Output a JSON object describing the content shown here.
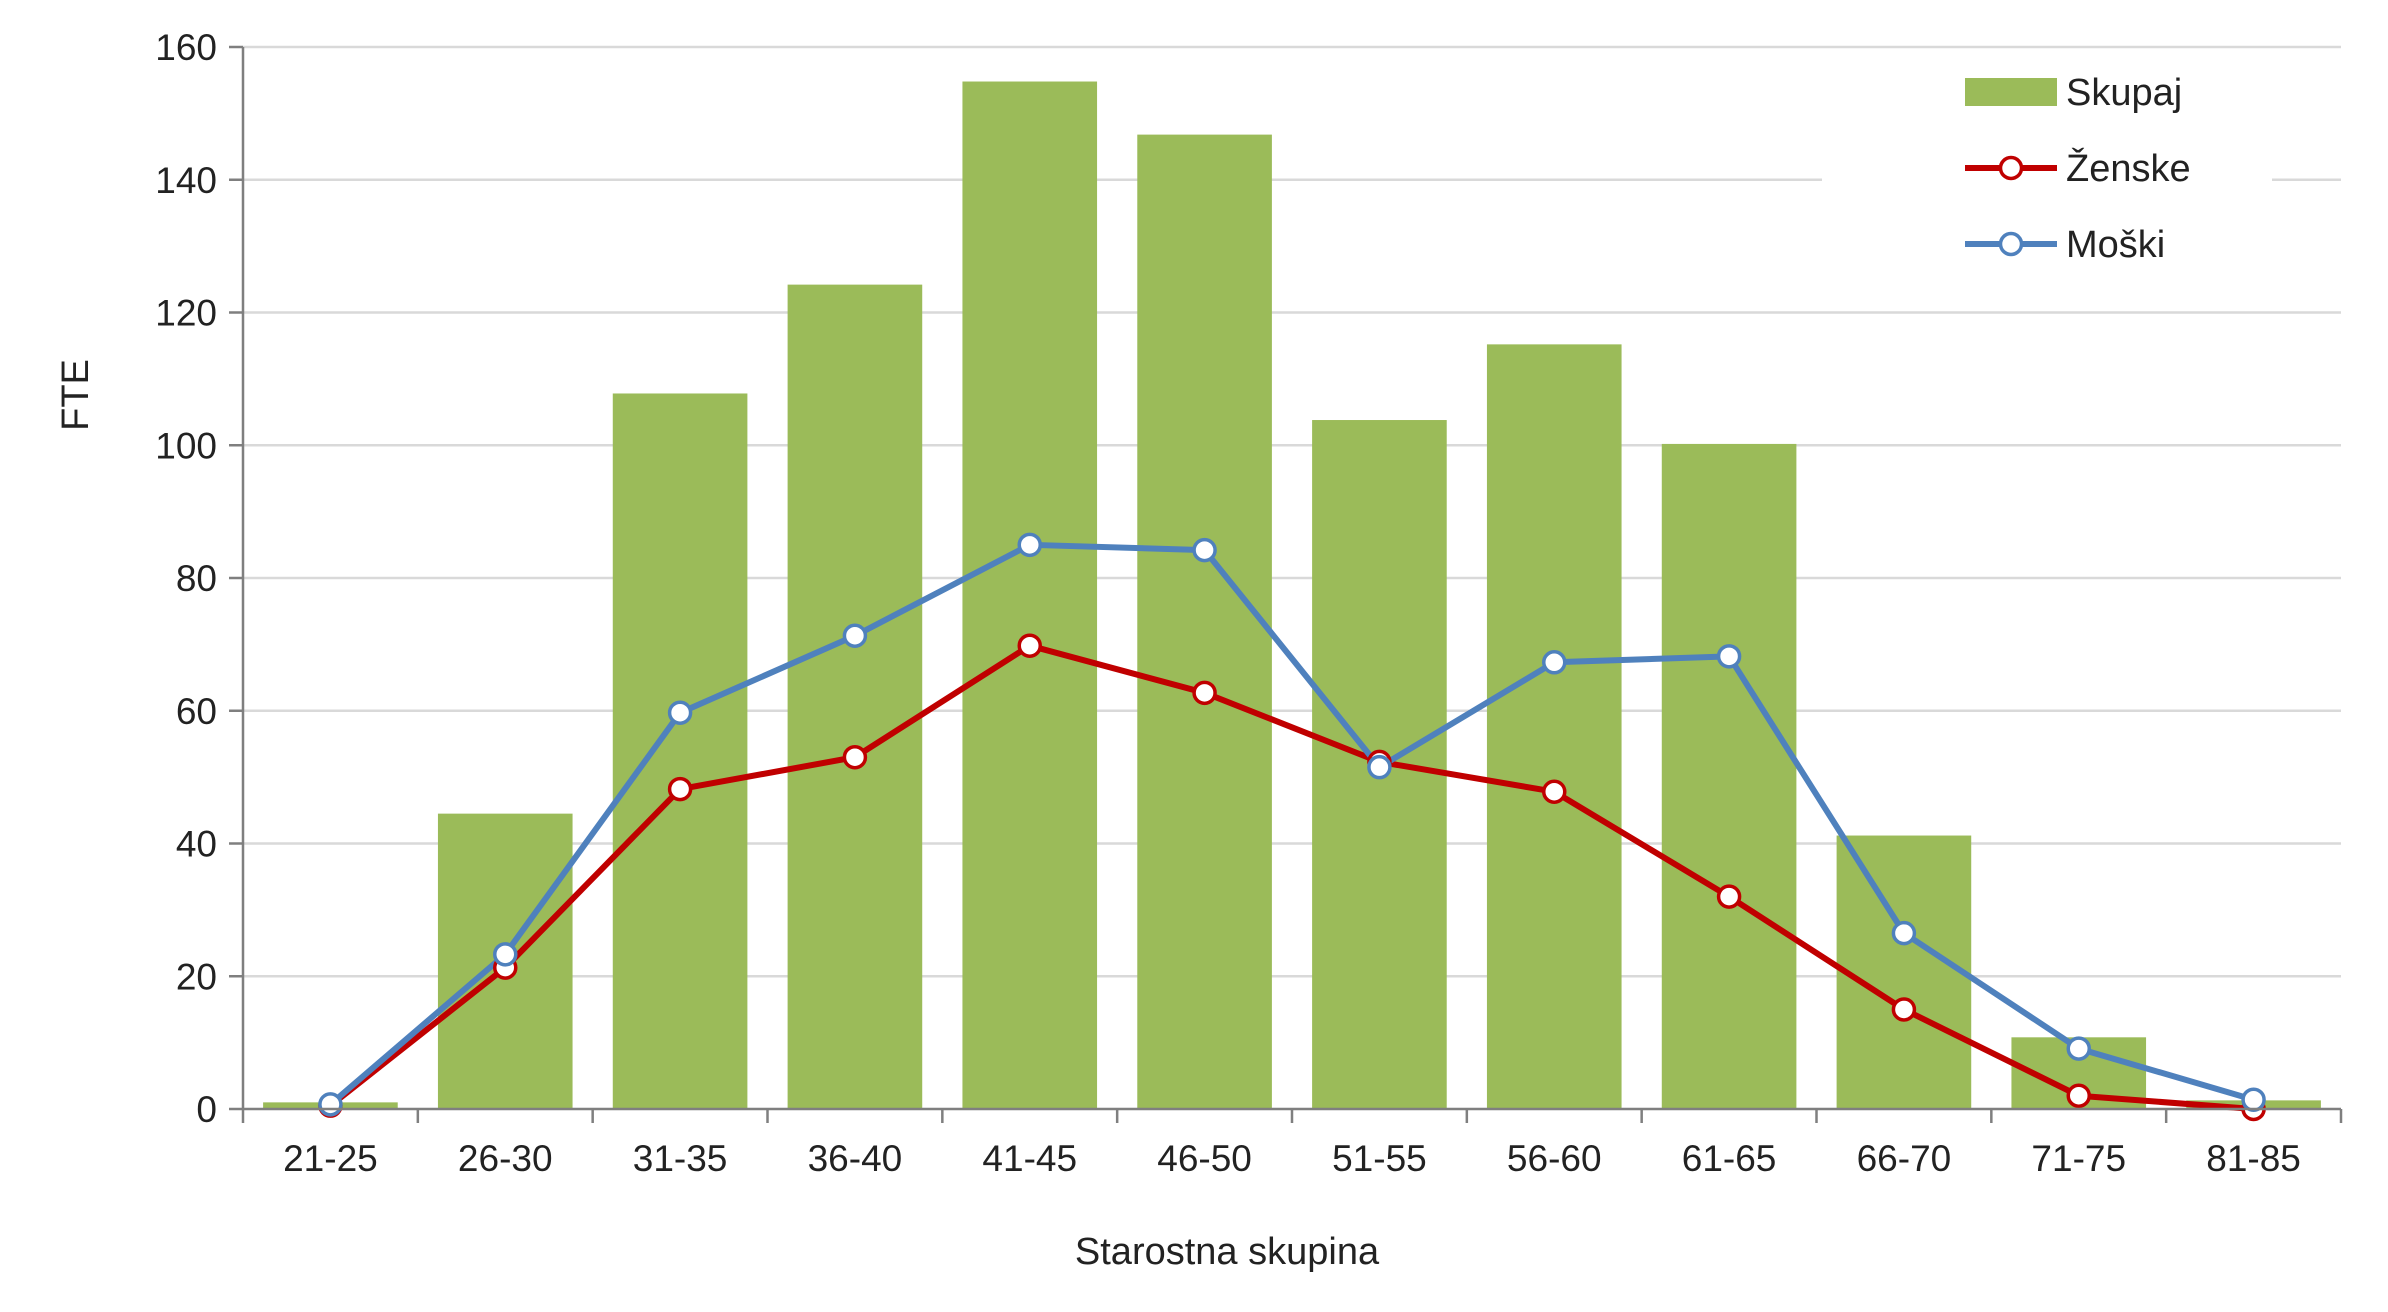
{
  "chart_data": {
    "type": "bar",
    "categories": [
      "21-25",
      "26-30",
      "31-35",
      "36-40",
      "41-45",
      "46-50",
      "51-55",
      "56-60",
      "61-65",
      "66-70",
      "71-75",
      "81-85"
    ],
    "series": [
      {
        "name": "Skupaj",
        "type": "bar",
        "color": "#9BBB59",
        "values": [
          1,
          44.5,
          107.8,
          124.2,
          154.8,
          146.8,
          103.8,
          115.2,
          100.2,
          41.2,
          10.8,
          1.3
        ]
      },
      {
        "name": "Ženske",
        "type": "line",
        "color": "#C00000",
        "values": [
          0.5,
          21.3,
          48.2,
          53,
          69.8,
          62.7,
          52.3,
          47.8,
          32,
          15,
          2,
          0
        ]
      },
      {
        "name": "Moški",
        "type": "line",
        "color": "#4F81BD",
        "values": [
          0.7,
          23.3,
          59.7,
          71.3,
          85,
          84.2,
          51.5,
          67.3,
          68.2,
          26.5,
          9.1,
          1.4
        ]
      }
    ],
    "title": "",
    "xlabel": "Starostna skupina",
    "ylabel": "FTE",
    "ylim": [
      0,
      160
    ],
    "yticks": [
      "0",
      "20",
      "40",
      "60",
      "80",
      "100",
      "120",
      "140",
      "160"
    ],
    "grid": true,
    "legend_position": "top-right"
  }
}
